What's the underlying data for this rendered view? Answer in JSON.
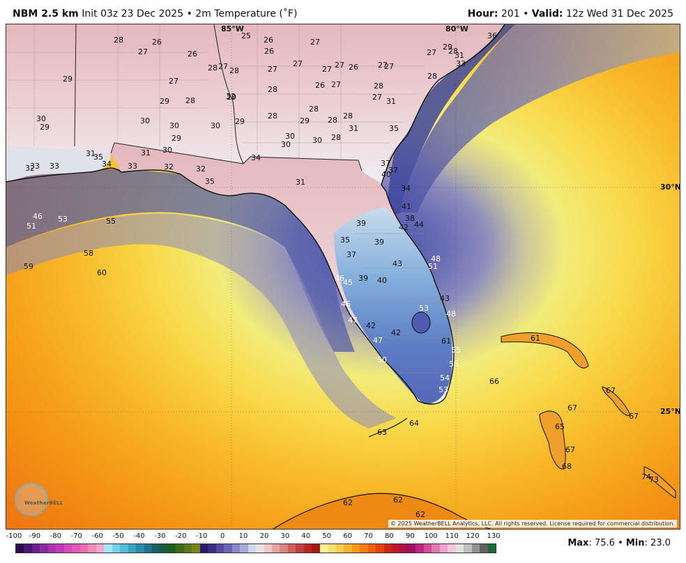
{
  "header": {
    "model": "NBM 2.5 km",
    "init": "Init 03z 23 Dec 2025",
    "sep": "•",
    "field": "2m Temperature (˚F)",
    "hour_label": "Hour:",
    "hour_value": "201",
    "valid_label": "Valid:",
    "valid_value": "12z Wed 31 Dec 2025"
  },
  "map": {
    "grid_labels": {
      "lon_85": "85°W",
      "lon_80": "80°W",
      "lat_30": "30°N",
      "lat_25": "25°N"
    },
    "copyright": "© 2025 WeatherBELL Analytics, LLC. All rights reserved. License required for commercial distribution.",
    "logo_text": "WeatherBELL",
    "station_values": [
      {
        "v": "25",
        "c": "#111"
      },
      {
        "v": "26",
        "c": "#111"
      },
      {
        "v": "28",
        "c": "#111"
      },
      {
        "v": "26",
        "c": "#111"
      },
      {
        "v": "27",
        "c": "#111"
      },
      {
        "v": "26",
        "c": "#111"
      },
      {
        "v": "26",
        "c": "#111"
      },
      {
        "v": "27",
        "c": "#111"
      },
      {
        "v": "29",
        "c": "#111"
      },
      {
        "v": "28",
        "c": "#111"
      },
      {
        "v": "31",
        "c": "#111"
      },
      {
        "v": "33",
        "c": "#111"
      },
      {
        "v": "36",
        "c": "#111"
      },
      {
        "v": "29",
        "c": "#111"
      },
      {
        "v": "27",
        "c": "#111"
      },
      {
        "v": "27",
        "c": "#111"
      },
      {
        "v": "27",
        "c": "#111"
      },
      {
        "v": "27",
        "c": "#111"
      },
      {
        "v": "26",
        "c": "#111"
      },
      {
        "v": "27",
        "c": "#111"
      },
      {
        "v": "27",
        "c": "#111"
      },
      {
        "v": "28",
        "c": "#111"
      },
      {
        "v": "28",
        "c": "#111"
      },
      {
        "v": "27",
        "c": "#111"
      },
      {
        "v": "26",
        "c": "#111"
      },
      {
        "v": "27",
        "c": "#111"
      },
      {
        "v": "27",
        "c": "#111"
      },
      {
        "v": "27",
        "c": "#111"
      },
      {
        "v": "28",
        "c": "#111"
      },
      {
        "v": "28",
        "c": "#111"
      },
      {
        "v": "28",
        "c": "#111"
      },
      {
        "v": "27",
        "c": "#111"
      },
      {
        "v": "29",
        "c": "#111"
      },
      {
        "v": "28",
        "c": "#111"
      },
      {
        "v": "29",
        "c": "#111"
      },
      {
        "v": "28",
        "c": "#111"
      },
      {
        "v": "28",
        "c": "#111"
      },
      {
        "v": "28",
        "c": "#111"
      },
      {
        "v": "28",
        "c": "#111"
      },
      {
        "v": "31",
        "c": "#111"
      },
      {
        "v": "31",
        "c": "#111"
      },
      {
        "v": "30",
        "c": "#111"
      },
      {
        "v": "29",
        "c": "#111"
      },
      {
        "v": "30",
        "c": "#111"
      },
      {
        "v": "30",
        "c": "#111"
      },
      {
        "v": "30",
        "c": "#111"
      },
      {
        "v": "29",
        "c": "#111"
      },
      {
        "v": "29",
        "c": "#111"
      },
      {
        "v": "29",
        "c": "#111"
      },
      {
        "v": "30",
        "c": "#111"
      },
      {
        "v": "30",
        "c": "#111"
      },
      {
        "v": "30",
        "c": "#111"
      },
      {
        "v": "28",
        "c": "#111"
      },
      {
        "v": "32",
        "c": "#111"
      },
      {
        "v": "35",
        "c": "#111"
      },
      {
        "v": "31",
        "c": "#111"
      },
      {
        "v": "31",
        "c": "#111"
      },
      {
        "v": "30",
        "c": "#111"
      },
      {
        "v": "34",
        "c": "#111"
      },
      {
        "v": "35",
        "c": "#111"
      },
      {
        "v": "34",
        "c": "#111"
      },
      {
        "v": "33",
        "c": "#111"
      },
      {
        "v": "32",
        "c": "#111"
      },
      {
        "v": "32",
        "c": "#111"
      },
      {
        "v": "35",
        "c": "#111"
      },
      {
        "v": "31",
        "c": "#111"
      },
      {
        "v": "32",
        "c": "#111"
      },
      {
        "v": "33",
        "c": "#111"
      },
      {
        "v": "33",
        "c": "#111"
      },
      {
        "v": "37",
        "c": "#111"
      },
      {
        "v": "37",
        "c": "#111"
      },
      {
        "v": "40",
        "c": "#111"
      },
      {
        "v": "34",
        "c": "#111"
      },
      {
        "v": "39",
        "c": "#111"
      },
      {
        "v": "41",
        "c": "#111"
      },
      {
        "v": "38",
        "c": "#111"
      },
      {
        "v": "42",
        "c": "#111"
      },
      {
        "v": "44",
        "c": "#111"
      },
      {
        "v": "35",
        "c": "#111"
      },
      {
        "v": "39",
        "c": "#111"
      },
      {
        "v": "37",
        "c": "#111"
      },
      {
        "v": "43",
        "c": "#111"
      },
      {
        "v": "48",
        "c": "#fff"
      },
      {
        "v": "51",
        "c": "#fff"
      },
      {
        "v": "39",
        "c": "#111"
      },
      {
        "v": "40",
        "c": "#111"
      },
      {
        "v": "46",
        "c": "#fff"
      },
      {
        "v": "45",
        "c": "#fff"
      },
      {
        "v": "46",
        "c": "#fff"
      },
      {
        "v": "47",
        "c": "#fff"
      },
      {
        "v": "43",
        "c": "#111"
      },
      {
        "v": "53",
        "c": "#fff"
      },
      {
        "v": "48",
        "c": "#fff"
      },
      {
        "v": "42",
        "c": "#111"
      },
      {
        "v": "42",
        "c": "#111"
      },
      {
        "v": "47",
        "c": "#fff"
      },
      {
        "v": "50",
        "c": "#fff"
      },
      {
        "v": "55",
        "c": "#fff"
      },
      {
        "v": "55",
        "c": "#fff"
      },
      {
        "v": "54",
        "c": "#fff"
      },
      {
        "v": "53",
        "c": "#fff"
      },
      {
        "v": "46",
        "c": "#fff"
      },
      {
        "v": "51",
        "c": "#fff"
      },
      {
        "v": "53",
        "c": "#fff"
      },
      {
        "v": "55",
        "c": "#111"
      },
      {
        "v": "58",
        "c": "#111"
      },
      {
        "v": "59",
        "c": "#111"
      },
      {
        "v": "60",
        "c": "#111"
      },
      {
        "v": "61",
        "c": "#111"
      },
      {
        "v": "61",
        "c": "#111"
      },
      {
        "v": "66",
        "c": "#111"
      },
      {
        "v": "67",
        "c": "#111"
      },
      {
        "v": "67",
        "c": "#111"
      },
      {
        "v": "67",
        "c": "#111"
      },
      {
        "v": "65",
        "c": "#111"
      },
      {
        "v": "67",
        "c": "#111"
      },
      {
        "v": "68",
        "c": "#111"
      },
      {
        "v": "74",
        "c": "#111"
      },
      {
        "v": "73",
        "c": "#111"
      },
      {
        "v": "62",
        "c": "#111"
      },
      {
        "v": "63",
        "c": "#111"
      },
      {
        "v": "62",
        "c": "#111"
      },
      {
        "v": "64",
        "c": "#111"
      },
      {
        "v": "62",
        "c": "#111"
      }
    ]
  },
  "scale": {
    "ticks": [
      "-100",
      "-90",
      "-80",
      "-70",
      "-60",
      "-50",
      "-40",
      "-30",
      "-20",
      "-10",
      "0",
      "10",
      "20",
      "30",
      "40",
      "50",
      "60",
      "70",
      "80",
      "90",
      "100",
      "110",
      "120",
      "130"
    ],
    "colors": [
      "#2a0a4a",
      "#4a1670",
      "#6a1e8c",
      "#8a2aa0",
      "#aa34b0",
      "#c23ab8",
      "#d64ab8",
      "#e05cb4",
      "#e870b0",
      "#ee8cc0",
      "#f4a8cc",
      "#a4e4f4",
      "#76d2ec",
      "#52bcd8",
      "#3aa4c0",
      "#2a8ca8",
      "#1e7488",
      "#186060",
      "#1a5a3c",
      "#205c20",
      "#3c6a1c",
      "#5a7818",
      "#7a8618",
      "#2a1a6a",
      "#3c2c86",
      "#54489e",
      "#6c64b4",
      "#8a86c8",
      "#aaa8d8",
      "#ccd6e8",
      "#ece2e6",
      "#f0c8c8",
      "#e6a4a4",
      "#dc8484",
      "#d06060",
      "#c44040",
      "#b82820",
      "#a41818",
      "#f8f08c",
      "#f8e070",
      "#f8cc50",
      "#f8b430",
      "#f89a18",
      "#f87c0c",
      "#f0600c",
      "#e44010",
      "#cc2418",
      "#c0142c",
      "#b0104a",
      "#a00e68",
      "#c02880",
      "#d05098",
      "#e078b4",
      "#f0a0cc",
      "#f8c4dc",
      "#e0e0e0",
      "#c0c0c0",
      "#909090",
      "#606060",
      "#1a6a38"
    ],
    "max_label": "Max",
    "max_value": "75.6",
    "min_label": "Min",
    "min_value": "23.0",
    "sep": "•"
  }
}
